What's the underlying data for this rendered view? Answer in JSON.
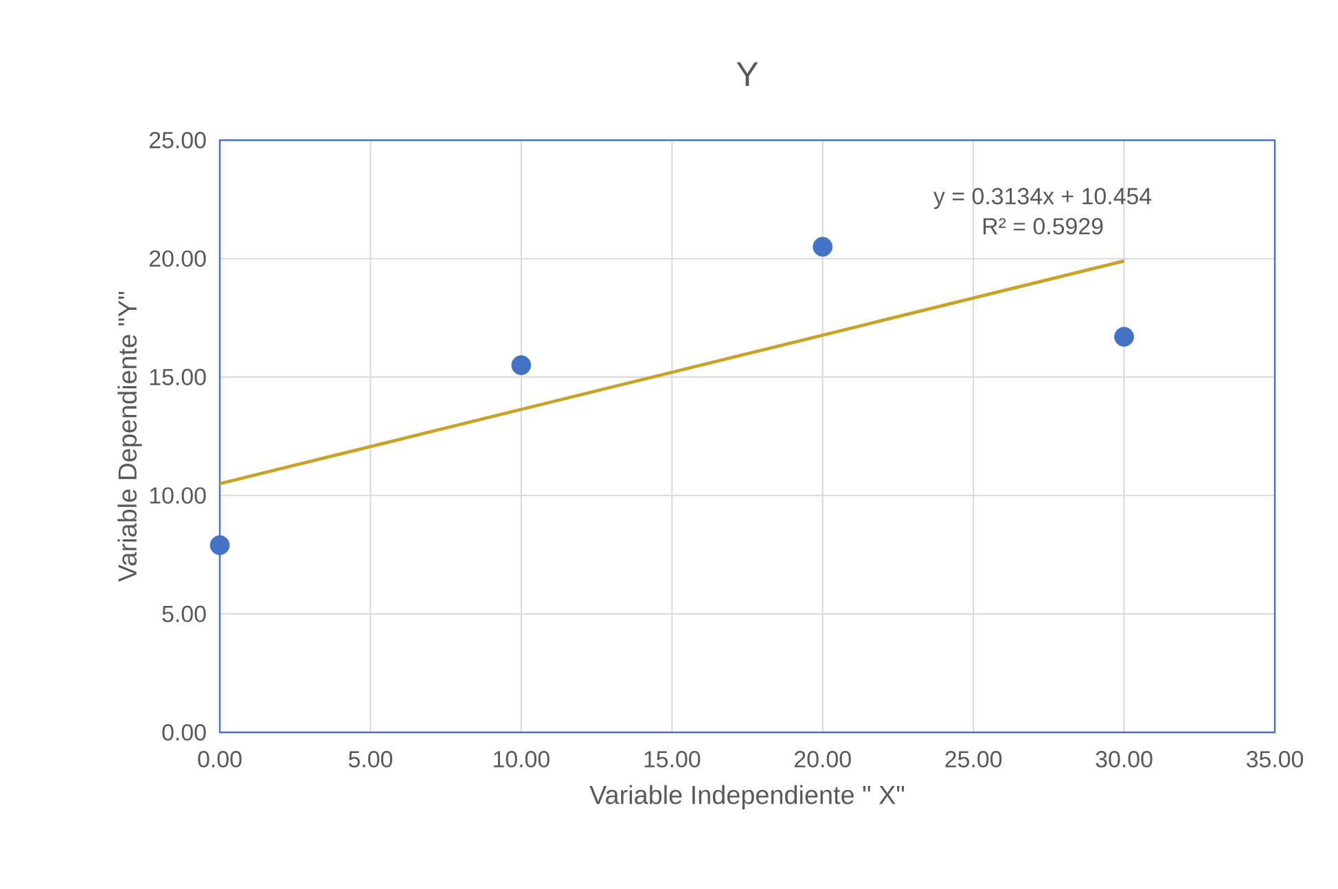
{
  "chart_data": {
    "type": "scatter",
    "title": "Y",
    "xlabel": "Variable Independiente \" X\"",
    "ylabel": "Variable Dependiente  \"Y\"",
    "series": [
      {
        "color": "#4472c4",
        "x": [
          0,
          10,
          20,
          30
        ],
        "values": [
          7.9,
          15.5,
          20.5,
          16.7
        ],
        "marker": "circle"
      },
      {
        "type": "line",
        "color": "#c9a227",
        "x": [
          0,
          30
        ],
        "values": [
          10.5,
          19.9
        ],
        "marker": "none",
        "line_style": "solid"
      }
    ],
    "annotations": [
      "y = 0.3134x + 10.454",
      "R² = 0.5929"
    ],
    "xlim": [
      0,
      35
    ],
    "ylim": [
      0,
      25
    ],
    "xticks": [
      {
        "value": 0,
        "label": "0.00"
      },
      {
        "value": 5,
        "label": "5.00"
      },
      {
        "value": 10,
        "label": "10.00"
      },
      {
        "value": 15,
        "label": "15.00"
      },
      {
        "value": 20,
        "label": "20.00"
      },
      {
        "value": 25,
        "label": "25.00"
      },
      {
        "value": 30,
        "label": "30.00"
      },
      {
        "value": 35,
        "label": "35.00"
      }
    ],
    "yticks": [
      {
        "value": 0,
        "label": "0.00"
      },
      {
        "value": 5,
        "label": "5.00"
      },
      {
        "value": 10,
        "label": "10.00"
      },
      {
        "value": 15,
        "label": "15.00"
      },
      {
        "value": 20,
        "label": "20.00"
      },
      {
        "value": 25,
        "label": "25.00"
      }
    ],
    "grid": true
  }
}
